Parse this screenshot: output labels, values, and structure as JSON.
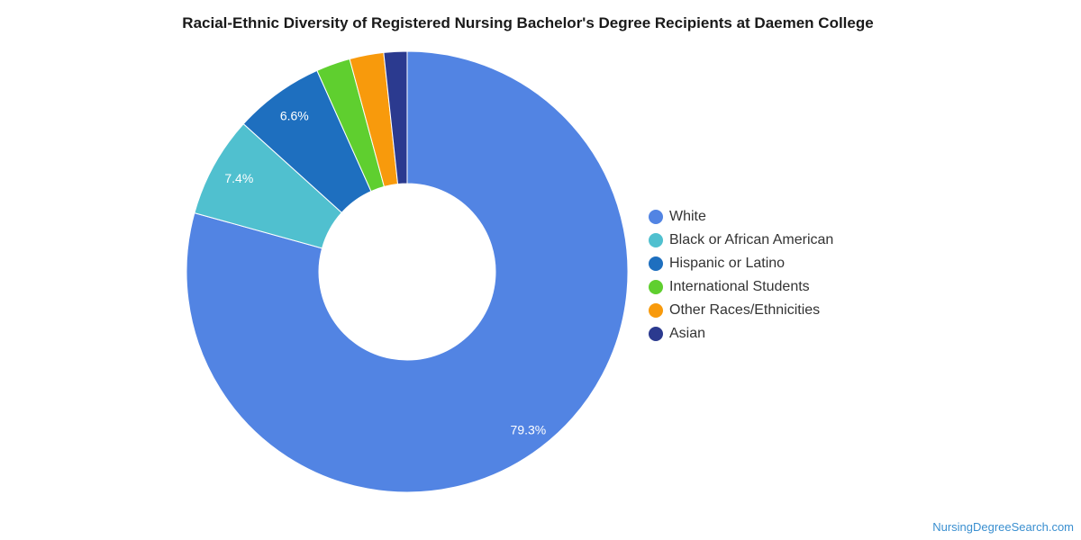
{
  "chart_data": {
    "type": "pie",
    "title": "Racial-Ethnic Diversity of Registered Nursing Bachelor's Degree Recipients at Daemen College",
    "hole": true,
    "legend_position": "right",
    "slices": [
      {
        "label": "White",
        "value": 79.3,
        "color": "#5284e3",
        "data_label": "79.3%"
      },
      {
        "label": "Black or African American",
        "value": 7.4,
        "color": "#50c0cf",
        "data_label": "7.4%"
      },
      {
        "label": "Hispanic or Latino",
        "value": 6.6,
        "color": "#1e6fbf",
        "data_label": "6.6%"
      },
      {
        "label": "International Students",
        "value": 2.5,
        "color": "#5fcf2f",
        "data_label": ""
      },
      {
        "label": "Other Races/Ethnicities",
        "value": 2.5,
        "color": "#f89a0c",
        "data_label": ""
      },
      {
        "label": "Asian",
        "value": 1.7,
        "color": "#2b3a8f",
        "data_label": ""
      }
    ]
  },
  "watermark": "NursingDegreeSearch.com"
}
